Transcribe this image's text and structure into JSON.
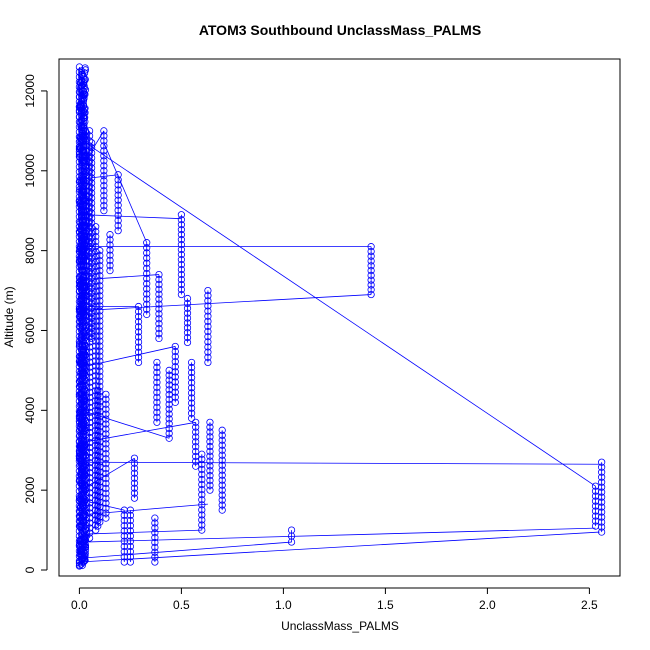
{
  "chart_data": {
    "type": "scatter",
    "title": "ATOM3 Southbound UnclassMass_PALMS",
    "xlabel": "UnclassMass_PALMS",
    "ylabel": "Altitude (m)",
    "xlim": [
      -0.1,
      2.65
    ],
    "ylim": [
      -150,
      12800
    ],
    "xticks": [
      0.0,
      0.5,
      1.0,
      1.5,
      2.0,
      2.5
    ],
    "xtick_labels": [
      "0.0",
      "0.5",
      "1.0",
      "1.5",
      "2.0",
      "2.5"
    ],
    "yticks": [
      0,
      2000,
      4000,
      6000,
      8000,
      10000,
      12000
    ],
    "ytick_labels": [
      "0",
      "2000",
      "4000",
      "6000",
      "8000",
      "10000",
      "12000"
    ],
    "grid": false,
    "marker": "open-circle",
    "line_connected": true,
    "series_color": "#0000ff",
    "base_cluster": {
      "x_min": 0.0,
      "x_max": 0.03,
      "y_min": 100,
      "y_max": 12600
    },
    "segments": [
      {
        "x": 0.0,
        "y": [
          100,
          12600
        ]
      },
      {
        "x": 0.01,
        "y": [
          150,
          12500
        ]
      },
      {
        "x": 0.02,
        "y": [
          200,
          12000
        ]
      },
      {
        "x": 0.03,
        "y": [
          500,
          11000
        ]
      },
      {
        "x": 0.05,
        "y": [
          800,
          11000
        ]
      },
      {
        "x": 0.06,
        "y": [
          5800,
          10700
        ]
      },
      {
        "x": 0.08,
        "y": [
          1000,
          8600
        ]
      },
      {
        "x": 0.09,
        "y": [
          1100,
          4500
        ]
      },
      {
        "x": 0.1,
        "y": [
          1200,
          8000
        ]
      },
      {
        "x": 0.12,
        "y": [
          9000,
          11000
        ]
      },
      {
        "x": 0.13,
        "y": [
          1300,
          4400
        ]
      },
      {
        "x": 0.15,
        "y": [
          7500,
          8400
        ]
      },
      {
        "x": 0.19,
        "y": [
          8500,
          9900
        ]
      },
      {
        "x": 0.22,
        "y": [
          200,
          1500
        ]
      },
      {
        "x": 0.25,
        "y": [
          200,
          1500
        ]
      },
      {
        "x": 0.27,
        "y": [
          1800,
          2800
        ]
      },
      {
        "x": 0.29,
        "y": [
          5200,
          6600
        ]
      },
      {
        "x": 0.33,
        "y": [
          6400,
          8200
        ]
      },
      {
        "x": 0.37,
        "y": [
          200,
          1300
        ]
      },
      {
        "x": 0.38,
        "y": [
          3700,
          5200
        ]
      },
      {
        "x": 0.39,
        "y": [
          5800,
          7400
        ]
      },
      {
        "x": 0.44,
        "y": [
          3300,
          5000
        ]
      },
      {
        "x": 0.47,
        "y": [
          4200,
          5600
        ]
      },
      {
        "x": 0.5,
        "y": [
          6900,
          8900
        ]
      },
      {
        "x": 0.53,
        "y": [
          5700,
          6800
        ]
      },
      {
        "x": 0.55,
        "y": [
          3800,
          5200
        ]
      },
      {
        "x": 0.57,
        "y": [
          2600,
          3700
        ]
      },
      {
        "x": 0.6,
        "y": [
          1000,
          2900
        ]
      },
      {
        "x": 0.63,
        "y": [
          5200,
          7000
        ]
      },
      {
        "x": 0.64,
        "y": [
          2000,
          3700
        ]
      },
      {
        "x": 0.7,
        "y": [
          1500,
          3500
        ]
      },
      {
        "x": 1.04,
        "y": [
          700,
          1000
        ]
      },
      {
        "x": 1.43,
        "y": [
          6900,
          8100
        ]
      },
      {
        "x": 2.53,
        "y": [
          1100,
          2100
        ]
      },
      {
        "x": 2.56,
        "y": [
          950,
          2700
        ]
      }
    ],
    "connectors": [
      {
        "from": [
          0.0,
          200
        ],
        "to": [
          2.55,
          950
        ]
      },
      {
        "from": [
          0.02,
          300
        ],
        "to": [
          1.04,
          700
        ]
      },
      {
        "from": [
          0.02,
          700
        ],
        "to": [
          2.53,
          1050
        ]
      },
      {
        "from": [
          0.03,
          900
        ],
        "to": [
          0.6,
          1000
        ]
      },
      {
        "from": [
          0.05,
          1400
        ],
        "to": [
          0.63,
          1650
        ]
      },
      {
        "from": [
          0.05,
          2700
        ],
        "to": [
          2.56,
          2650
        ]
      },
      {
        "from": [
          0.01,
          4000
        ],
        "to": [
          0.44,
          3300
        ]
      },
      {
        "from": [
          0.01,
          8100
        ],
        "to": [
          1.43,
          8100
        ]
      },
      {
        "from": [
          0.02,
          6500
        ],
        "to": [
          1.43,
          6900
        ]
      },
      {
        "from": [
          0.02,
          8900
        ],
        "to": [
          0.5,
          8800
        ]
      },
      {
        "from": [
          0.03,
          10700
        ],
        "to": [
          2.53,
          2100
        ]
      },
      {
        "from": [
          0.02,
          9800
        ],
        "to": [
          0.19,
          9900
        ]
      },
      {
        "from": [
          0.03,
          5100
        ],
        "to": [
          0.47,
          5600
        ]
      },
      {
        "from": [
          0.02,
          3200
        ],
        "to": [
          0.57,
          3700
        ]
      },
      {
        "from": [
          0.03,
          6600
        ],
        "to": [
          0.29,
          6600
        ]
      },
      {
        "from": [
          0.1,
          7300
        ],
        "to": [
          0.39,
          7400
        ]
      },
      {
        "from": [
          0.05,
          1700
        ],
        "to": [
          0.22,
          1500
        ]
      },
      {
        "from": [
          0.04,
          2100
        ],
        "to": [
          0.27,
          2800
        ]
      },
      {
        "from": [
          0.12,
          10700
        ],
        "to": [
          0.33,
          8200
        ]
      },
      {
        "from": [
          0.06,
          10500
        ],
        "to": [
          0.12,
          11000
        ]
      }
    ]
  }
}
